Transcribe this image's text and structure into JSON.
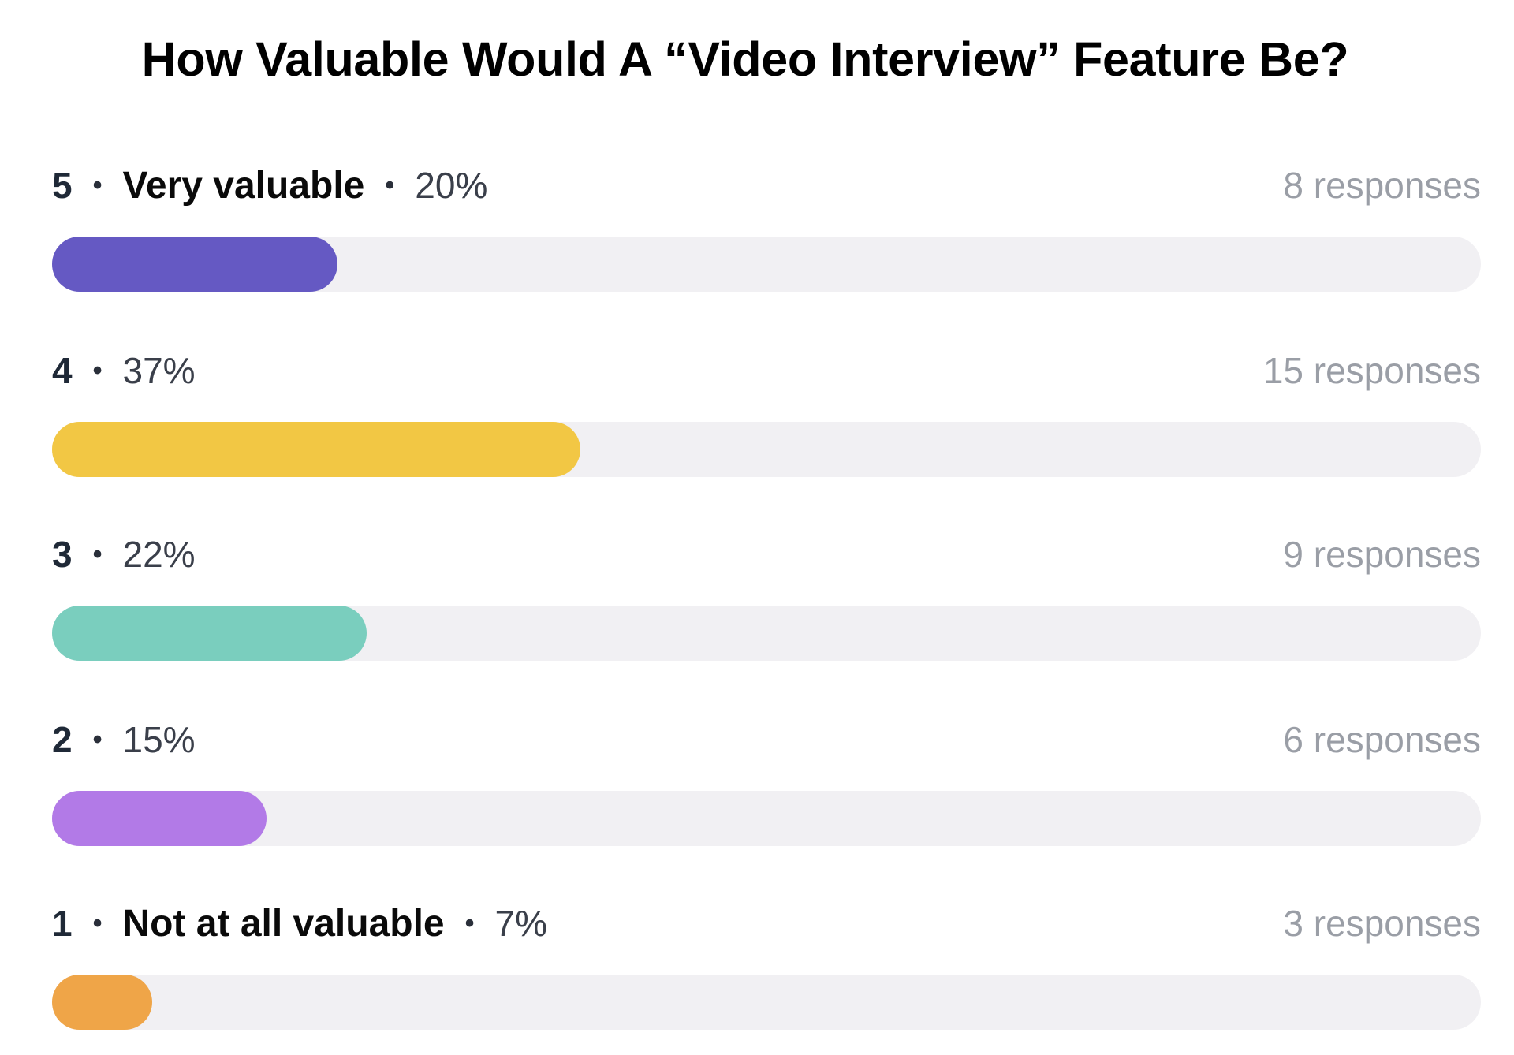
{
  "title": "How Valuable Would A “Video Interview” Feature Be?",
  "separator": "•",
  "rows": [
    {
      "rating": "5",
      "label": "Very valuable",
      "percent_label": "20%",
      "responses_label": "8 responses",
      "color": "#6559c3"
    },
    {
      "rating": "4",
      "label": "",
      "percent_label": "37%",
      "responses_label": "15 responses",
      "color": "#f2c744"
    },
    {
      "rating": "3",
      "label": "",
      "percent_label": "22%",
      "responses_label": "9 responses",
      "color": "#7acebe"
    },
    {
      "rating": "2",
      "label": "",
      "percent_label": "15%",
      "responses_label": "6 responses",
      "color": "#b27ae7"
    },
    {
      "rating": "1",
      "label": "Not at all valuable",
      "percent_label": "7%",
      "responses_label": "3 responses",
      "color": "#efa548"
    }
  ],
  "chart_data": {
    "type": "bar",
    "orientation": "horizontal",
    "title": "How Valuable Would A “Video Interview” Feature Be?",
    "categories": [
      "5",
      "4",
      "3",
      "2",
      "1"
    ],
    "category_labels": [
      "Very valuable",
      "",
      "",
      "",
      "Not at all valuable"
    ],
    "values": [
      20,
      37,
      22,
      15,
      7
    ],
    "value_unit": "%",
    "responses": [
      8,
      15,
      9,
      6,
      3
    ],
    "colors": [
      "#6559c3",
      "#f2c744",
      "#7acebe",
      "#b27ae7",
      "#efa548"
    ],
    "xlim": [
      0,
      100
    ],
    "grid": false,
    "legend": "none"
  }
}
